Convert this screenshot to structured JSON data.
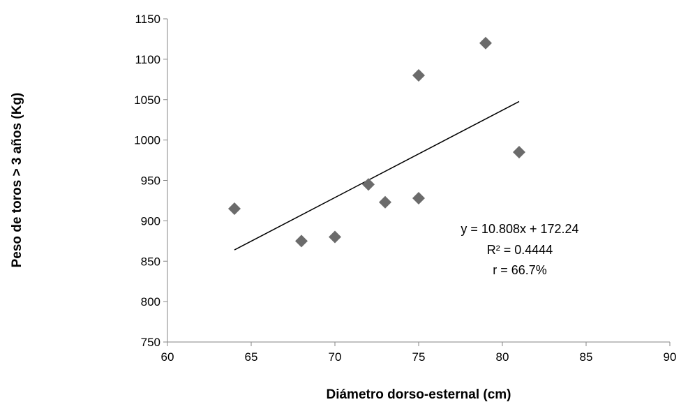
{
  "chart_data": {
    "type": "scatter",
    "title": "",
    "xlabel": "Diámetro dorso-esternal  (cm)",
    "ylabel": "Peso de toros > 3 años (Kg)",
    "xlim": [
      60,
      90
    ],
    "ylim": [
      750,
      1150
    ],
    "x_ticks": [
      "60",
      "65",
      "70",
      "75",
      "80",
      "85",
      "90"
    ],
    "y_ticks": [
      "750",
      "800",
      "850",
      "900",
      "950",
      "1000",
      "1050",
      "1100",
      "1150"
    ],
    "grid": false,
    "legend": "none",
    "marker": "diamond",
    "marker_color": "#6b6b6b",
    "points": [
      {
        "x": 64,
        "y": 915
      },
      {
        "x": 68,
        "y": 875
      },
      {
        "x": 70,
        "y": 880
      },
      {
        "x": 72,
        "y": 945
      },
      {
        "x": 73,
        "y": 923
      },
      {
        "x": 75,
        "y": 928
      },
      {
        "x": 75,
        "y": 1080
      },
      {
        "x": 79,
        "y": 1120
      },
      {
        "x": 81,
        "y": 985
      }
    ],
    "trendline": {
      "slope": 10.808,
      "intercept": 172.24,
      "x_range": [
        64,
        81
      ],
      "color": "#000000"
    },
    "annotations": [
      "y = 10.808x + 172.24",
      "R² = 0.4444",
      "r = 66.7%"
    ]
  }
}
